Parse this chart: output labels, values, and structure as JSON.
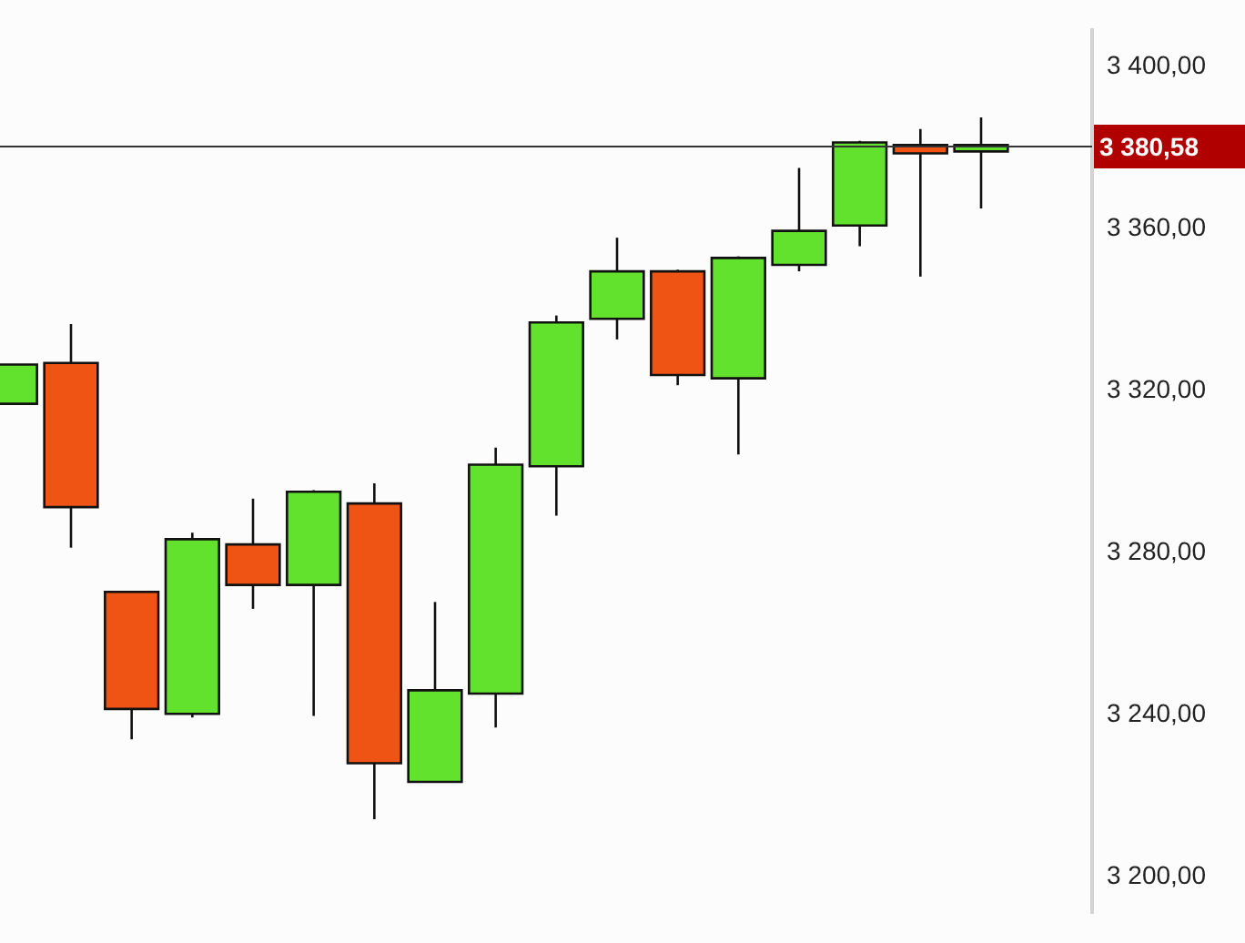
{
  "chart_data": {
    "type": "candlestick",
    "categories": [
      null,
      null,
      null,
      null,
      null,
      null,
      null,
      null,
      null,
      null,
      null,
      null,
      null,
      null,
      null,
      null,
      null
    ],
    "ohlc": [
      [
        3316.7,
        3326.4,
        3316.7,
        3326.4
      ],
      [
        3326.8,
        3336.4,
        3281.2,
        3291.2
      ],
      [
        3270.3,
        3270.3,
        3233.9,
        3241.4
      ],
      [
        3240.2,
        3284.9,
        3239.3,
        3283.3
      ],
      [
        3282.0,
        3293.3,
        3266.1,
        3272.0
      ],
      [
        3272.0,
        3295.4,
        3239.7,
        3295.0
      ],
      [
        3292.1,
        3297.1,
        3214.2,
        3228.0
      ],
      [
        3223.4,
        3267.8,
        3223.4,
        3246.0
      ],
      [
        3245.2,
        3305.9,
        3236.8,
        3301.7
      ],
      [
        3301.3,
        3338.5,
        3289.1,
        3336.8
      ],
      [
        3337.7,
        3357.7,
        3332.6,
        3349.4
      ],
      [
        3349.4,
        3349.8,
        3321.3,
        3323.8
      ],
      [
        3323.0,
        3353.1,
        3304.2,
        3352.7
      ],
      [
        3351.0,
        3374.9,
        3349.4,
        3359.4
      ],
      [
        3360.7,
        3381.6,
        3355.6,
        3381.2
      ],
      [
        3380.6,
        3384.5,
        3348.1,
        3378.5
      ],
      [
        3379.0,
        3387.4,
        3364.9,
        3380.58
      ]
    ],
    "colors": [
      "#62e22c",
      "#f05414",
      "#f05414",
      "#62e22c",
      "#f05414",
      "#62e22c",
      "#f05414",
      "#62e22c",
      "#62e22c",
      "#62e22c",
      "#62e22c",
      "#f05414",
      "#62e22c",
      "#62e22c",
      "#62e22c",
      "#f05414",
      "#62e22c"
    ],
    "ylim": [
      3191,
      3409
    ],
    "yticks": [
      {
        "value": 3200,
        "label": "3 200,00"
      },
      {
        "value": 3240,
        "label": "3 240,00"
      },
      {
        "value": 3280,
        "label": "3 280,00"
      },
      {
        "value": 3320,
        "label": "3 320,00"
      },
      {
        "value": 3360,
        "label": "3 360,00"
      },
      {
        "value": 3400,
        "label": "3 400,00"
      }
    ],
    "ref_lines": [
      {
        "axis": "y",
        "value": 3380.58,
        "label": "3 380,58"
      }
    ],
    "grid": false,
    "legend": false
  }
}
